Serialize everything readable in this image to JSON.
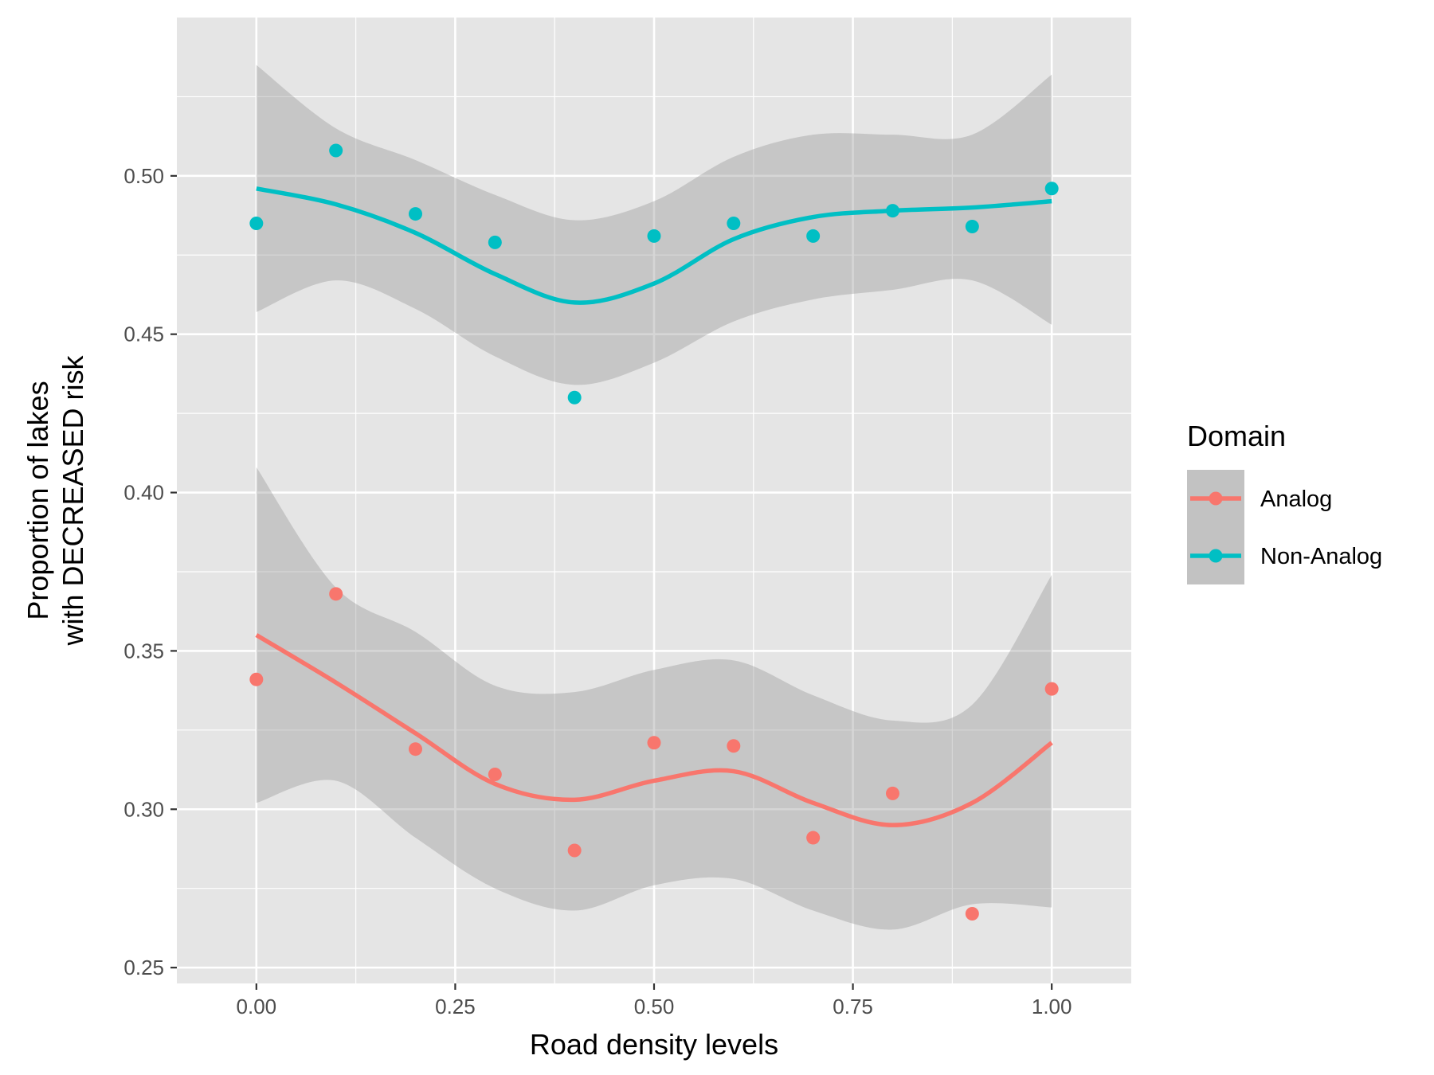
{
  "chart_data": {
    "type": "scatter",
    "title": "",
    "xlabel": "Road density levels",
    "ylabel_lines": [
      "Proportion of lakes",
      "with DECREASED risk"
    ],
    "xlim": [
      -0.1,
      1.1
    ],
    "ylim": [
      0.245,
      0.55
    ],
    "x_ticks": [
      0.0,
      0.25,
      0.5,
      0.75,
      1.0
    ],
    "x_tick_labels": [
      "0.00",
      "0.25",
      "0.50",
      "0.75",
      "1.00"
    ],
    "y_ticks": [
      0.25,
      0.3,
      0.35,
      0.4,
      0.45,
      0.5
    ],
    "y_tick_labels": [
      "0.25",
      "0.30",
      "0.35",
      "0.40",
      "0.45",
      "0.50"
    ],
    "grid": true,
    "legend": {
      "title": "Domain",
      "position": "right"
    },
    "colors": {
      "panel": "#e5e5e5",
      "grid": "#ffffff",
      "ribbon": "#999999"
    },
    "series": [
      {
        "name": "Analog",
        "color": "#f8766d",
        "points": [
          [
            0.0,
            0.341
          ],
          [
            0.1,
            0.368
          ],
          [
            0.2,
            0.319
          ],
          [
            0.3,
            0.311
          ],
          [
            0.4,
            0.287
          ],
          [
            0.5,
            0.321
          ],
          [
            0.6,
            0.32
          ],
          [
            0.7,
            0.291
          ],
          [
            0.8,
            0.305
          ],
          [
            0.9,
            0.267
          ],
          [
            1.0,
            0.338
          ]
        ],
        "smooth": [
          [
            0.0,
            0.355
          ],
          [
            0.1,
            0.34
          ],
          [
            0.2,
            0.324
          ],
          [
            0.3,
            0.308
          ],
          [
            0.4,
            0.303
          ],
          [
            0.5,
            0.309
          ],
          [
            0.6,
            0.312
          ],
          [
            0.7,
            0.302
          ],
          [
            0.8,
            0.295
          ],
          [
            0.9,
            0.302
          ],
          [
            1.0,
            0.321
          ]
        ],
        "ribbon_upper": [
          [
            0.0,
            0.408
          ],
          [
            0.1,
            0.37
          ],
          [
            0.2,
            0.356
          ],
          [
            0.3,
            0.339
          ],
          [
            0.4,
            0.337
          ],
          [
            0.5,
            0.344
          ],
          [
            0.6,
            0.347
          ],
          [
            0.7,
            0.336
          ],
          [
            0.8,
            0.328
          ],
          [
            0.9,
            0.333
          ],
          [
            1.0,
            0.374
          ]
        ],
        "ribbon_lower": [
          [
            0.0,
            0.302
          ],
          [
            0.1,
            0.309
          ],
          [
            0.2,
            0.291
          ],
          [
            0.3,
            0.275
          ],
          [
            0.4,
            0.268
          ],
          [
            0.5,
            0.276
          ],
          [
            0.6,
            0.278
          ],
          [
            0.7,
            0.268
          ],
          [
            0.8,
            0.262
          ],
          [
            0.9,
            0.27
          ],
          [
            1.0,
            0.269
          ]
        ]
      },
      {
        "name": "Non-Analog",
        "color": "#00bfc4",
        "points": [
          [
            0.0,
            0.485
          ],
          [
            0.1,
            0.508
          ],
          [
            0.2,
            0.488
          ],
          [
            0.3,
            0.479
          ],
          [
            0.4,
            0.43
          ],
          [
            0.5,
            0.481
          ],
          [
            0.6,
            0.485
          ],
          [
            0.7,
            0.481
          ],
          [
            0.8,
            0.489
          ],
          [
            0.9,
            0.484
          ],
          [
            1.0,
            0.496
          ]
        ],
        "smooth": [
          [
            0.0,
            0.496
          ],
          [
            0.1,
            0.491
          ],
          [
            0.2,
            0.482
          ],
          [
            0.3,
            0.469
          ],
          [
            0.4,
            0.46
          ],
          [
            0.5,
            0.466
          ],
          [
            0.6,
            0.48
          ],
          [
            0.7,
            0.487
          ],
          [
            0.8,
            0.489
          ],
          [
            0.9,
            0.49
          ],
          [
            1.0,
            0.492
          ]
        ],
        "ribbon_upper": [
          [
            0.0,
            0.535
          ],
          [
            0.1,
            0.515
          ],
          [
            0.2,
            0.505
          ],
          [
            0.3,
            0.494
          ],
          [
            0.4,
            0.486
          ],
          [
            0.5,
            0.492
          ],
          [
            0.6,
            0.506
          ],
          [
            0.7,
            0.513
          ],
          [
            0.8,
            0.513
          ],
          [
            0.9,
            0.513
          ],
          [
            1.0,
            0.532
          ]
        ],
        "ribbon_lower": [
          [
            0.0,
            0.457
          ],
          [
            0.1,
            0.467
          ],
          [
            0.2,
            0.458
          ],
          [
            0.3,
            0.443
          ],
          [
            0.4,
            0.434
          ],
          [
            0.5,
            0.441
          ],
          [
            0.6,
            0.454
          ],
          [
            0.7,
            0.461
          ],
          [
            0.8,
            0.464
          ],
          [
            0.9,
            0.467
          ],
          [
            1.0,
            0.453
          ]
        ]
      }
    ]
  }
}
